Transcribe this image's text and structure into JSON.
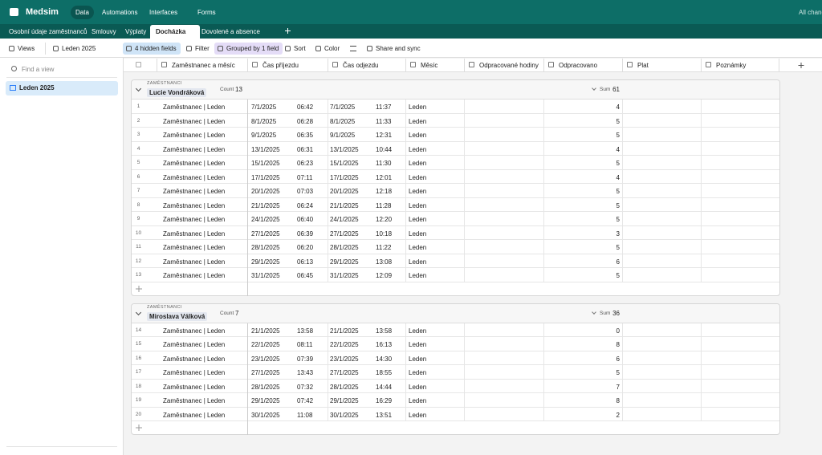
{
  "topbar": {
    "app": "Medsim",
    "nav": [
      "Data",
      "Automations",
      "Interfaces",
      "Forms"
    ],
    "status": "All changes saved"
  },
  "tabs": [
    "Osobní údaje zaměstnanců",
    "Smlouvy",
    "Výplaty",
    "Docházka",
    "Dovolené a absence"
  ],
  "toolbar": {
    "views": "Views",
    "view": "Leden 2025",
    "hidden": "4 hidden fields",
    "filter": "Filter",
    "group": "Grouped by 1 field",
    "sort": "Sort",
    "color": "Color",
    "share": "Share and sync"
  },
  "sidebar": {
    "search": "Find a view",
    "views": [
      "Leden 2025"
    ]
  },
  "columns": [
    "Zaměstnanec a měsíc",
    "Čas příjezdu",
    "Čas odjezdu",
    "Měsíc",
    "Odpracované hodiny",
    "Odpracovano",
    "Plat",
    "Poznámky"
  ],
  "groups": [
    {
      "field": "ZAMĚSTNANCI",
      "name": "Lucie Vondráková",
      "count_label": "Count",
      "count": 13,
      "sum_label": "Sum",
      "sum": 61,
      "rows": [
        [
          1,
          "Zaměstnanec | Leden",
          "7/1/2025",
          "06:42",
          "7/1/2025",
          "11:37",
          "Leden",
          4
        ],
        [
          2,
          "Zaměstnanec | Leden",
          "8/1/2025",
          "06:28",
          "8/1/2025",
          "11:33",
          "Leden",
          5
        ],
        [
          3,
          "Zaměstnanec | Leden",
          "9/1/2025",
          "06:35",
          "9/1/2025",
          "12:31",
          "Leden",
          5
        ],
        [
          4,
          "Zaměstnanec | Leden",
          "13/1/2025",
          "06:31",
          "13/1/2025",
          "10:44",
          "Leden",
          4
        ],
        [
          5,
          "Zaměstnanec | Leden",
          "15/1/2025",
          "06:23",
          "15/1/2025",
          "11:30",
          "Leden",
          5
        ],
        [
          6,
          "Zaměstnanec | Leden",
          "17/1/2025",
          "07:11",
          "17/1/2025",
          "12:01",
          "Leden",
          4
        ],
        [
          7,
          "Zaměstnanec | Leden",
          "20/1/2025",
          "07:03",
          "20/1/2025",
          "12:18",
          "Leden",
          5
        ],
        [
          8,
          "Zaměstnanec | Leden",
          "21/1/2025",
          "06:24",
          "21/1/2025",
          "11:28",
          "Leden",
          5
        ],
        [
          9,
          "Zaměstnanec | Leden",
          "24/1/2025",
          "06:40",
          "24/1/2025",
          "12:20",
          "Leden",
          5
        ],
        [
          10,
          "Zaměstnanec | Leden",
          "27/1/2025",
          "06:39",
          "27/1/2025",
          "10:18",
          "Leden",
          3
        ],
        [
          11,
          "Zaměstnanec | Leden",
          "28/1/2025",
          "06:20",
          "28/1/2025",
          "11:22",
          "Leden",
          5
        ],
        [
          12,
          "Zaměstnanec | Leden",
          "29/1/2025",
          "06:13",
          "29/1/2025",
          "13:08",
          "Leden",
          6
        ],
        [
          13,
          "Zaměstnanec | Leden",
          "31/1/2025",
          "06:45",
          "31/1/2025",
          "12:09",
          "Leden",
          5
        ]
      ]
    },
    {
      "field": "ZAMĚSTNANCI",
      "name": "Miroslava Válková",
      "count_label": "Count",
      "count": 7,
      "sum_label": "Sum",
      "sum": 36,
      "rows": [
        [
          14,
          "Zaměstnanec | Leden",
          "21/1/2025",
          "13:58",
          "21/1/2025",
          "13:58",
          "Leden",
          0
        ],
        [
          15,
          "Zaměstnanec | Leden",
          "22/1/2025",
          "08:11",
          "22/1/2025",
          "16:13",
          "Leden",
          8
        ],
        [
          16,
          "Zaměstnanec | Leden",
          "23/1/2025",
          "07:39",
          "23/1/2025",
          "14:30",
          "Leden",
          6
        ],
        [
          17,
          "Zaměstnanec | Leden",
          "27/1/2025",
          "13:43",
          "27/1/2025",
          "18:55",
          "Leden",
          5
        ],
        [
          18,
          "Zaměstnanec | Leden",
          "28/1/2025",
          "07:32",
          "28/1/2025",
          "14:44",
          "Leden",
          7
        ],
        [
          19,
          "Zaměstnanec | Leden",
          "29/1/2025",
          "07:42",
          "29/1/2025",
          "16:29",
          "Leden",
          8
        ],
        [
          20,
          "Zaměstnanec | Leden",
          "30/1/2025",
          "11:08",
          "30/1/2025",
          "13:51",
          "Leden",
          2
        ]
      ]
    }
  ]
}
